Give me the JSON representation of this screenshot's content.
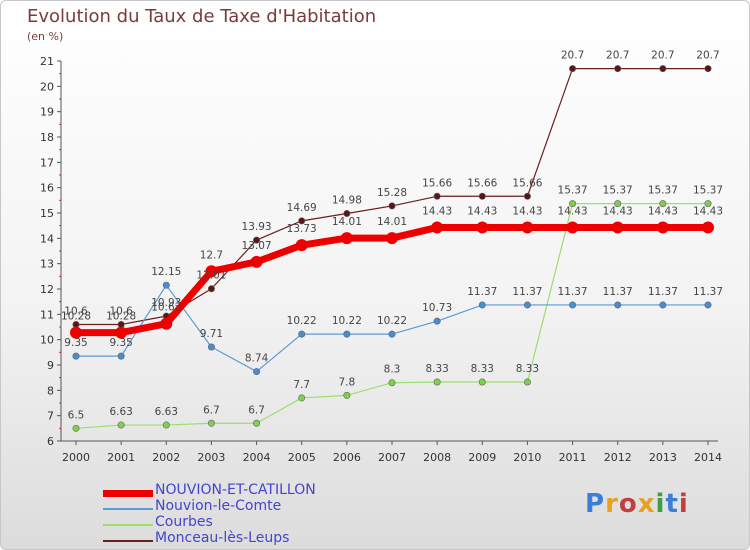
{
  "title": "Evolution du Taux de Taxe d'Habitation",
  "unit_label": "(en %)",
  "logo": {
    "text": "Proxiti",
    "letters": [
      "P",
      "r",
      "o",
      "x",
      "i",
      "t",
      "i"
    ],
    "colors": [
      "#3b7dd8",
      "#e8a020",
      "#c04040",
      "#e8a020",
      "#3ba040",
      "#3b7dd8",
      "#c04040"
    ]
  },
  "chart_data": {
    "type": "line",
    "x": [
      "2000",
      "2001",
      "2002",
      "2003",
      "2004",
      "2005",
      "2006",
      "2007",
      "2008",
      "2009",
      "2010",
      "2011",
      "2012",
      "2013",
      "2014"
    ],
    "ylim": [
      6,
      21
    ],
    "yticks": [
      6,
      7,
      8,
      9,
      10,
      11,
      12,
      13,
      14,
      15,
      16,
      17,
      18,
      19,
      20,
      21
    ],
    "grid": false,
    "legend_position": "bottom-left",
    "series": [
      {
        "name": "Monceau-lès-Leups",
        "color": "#6a1f1f",
        "width": 1.2,
        "marker": "#5a1515",
        "labelOffset": -10,
        "values": [
          10.6,
          10.6,
          10.93,
          12.01,
          13.93,
          14.69,
          14.98,
          15.28,
          15.66,
          15.66,
          15.66,
          20.7,
          20.7,
          20.7,
          20.7
        ],
        "labels": [
          "10.6",
          "10.6",
          "10.93",
          "12.01",
          "13.93",
          "14.69",
          "14.98",
          "15.28",
          "15.66",
          "15.66",
          "15.66",
          "20.7",
          "20.7",
          "20.7",
          "20.7"
        ]
      },
      {
        "name": "Courbes",
        "color": "#9ede6a",
        "width": 1.2,
        "marker": "#7ed04a",
        "labelOffset": -10,
        "values": [
          6.5,
          6.63,
          6.63,
          6.7,
          6.7,
          7.7,
          7.8,
          8.3,
          8.33,
          8.33,
          8.33,
          15.37,
          15.37,
          15.37,
          15.37
        ],
        "labels": [
          "6.5",
          "6.63",
          "6.63",
          "6.7",
          "6.7",
          "7.7",
          "7.8",
          "8.3",
          "8.33",
          "8.33",
          "8.33",
          "15.37",
          "15.37",
          "15.37",
          "15.37"
        ]
      },
      {
        "name": "Nouvion-le-Comte",
        "color": "#5b9bd5",
        "width": 1.2,
        "marker": "#4a8ccc",
        "labelOffset": -10,
        "values": [
          9.35,
          9.35,
          12.15,
          9.71,
          8.74,
          10.22,
          10.22,
          10.22,
          10.73,
          11.37,
          11.37,
          11.37,
          11.37,
          11.37,
          11.37
        ],
        "labels": [
          "9.35",
          "9.35",
          "12.15",
          "9.71",
          "8.74",
          "10.22",
          "10.22",
          "10.22",
          "10.73",
          "11.37",
          "11.37",
          "11.37",
          "11.37",
          "11.37",
          "11.37"
        ]
      },
      {
        "name": "NOUVION-ET-CATILLON",
        "color": "#ee0000",
        "width": 7,
        "marker": "#ee0000",
        "labelOffset": -13,
        "values": [
          10.28,
          10.28,
          10.63,
          12.7,
          13.07,
          13.73,
          14.01,
          14.01,
          14.43,
          14.43,
          14.43,
          14.43,
          14.43,
          14.43,
          14.43
        ],
        "labels": [
          "10.28",
          "10.28",
          "10.63",
          "12.7",
          "13.07",
          "13.73",
          "14.01",
          "14.01",
          "14.43",
          "14.43",
          "14.43",
          "14.43",
          "14.43",
          "14.43",
          "14.43"
        ]
      }
    ]
  },
  "legend": [
    {
      "name": "NOUVION-ET-CATILLON",
      "color": "#ee0000",
      "thickness": 7
    },
    {
      "name": "Nouvion-le-Comte",
      "color": "#5b9bd5",
      "thickness": 2
    },
    {
      "name": "Courbes",
      "color": "#9ede6a",
      "thickness": 2
    },
    {
      "name": "Monceau-lès-Leups",
      "color": "#6a1f1f",
      "thickness": 2
    }
  ]
}
